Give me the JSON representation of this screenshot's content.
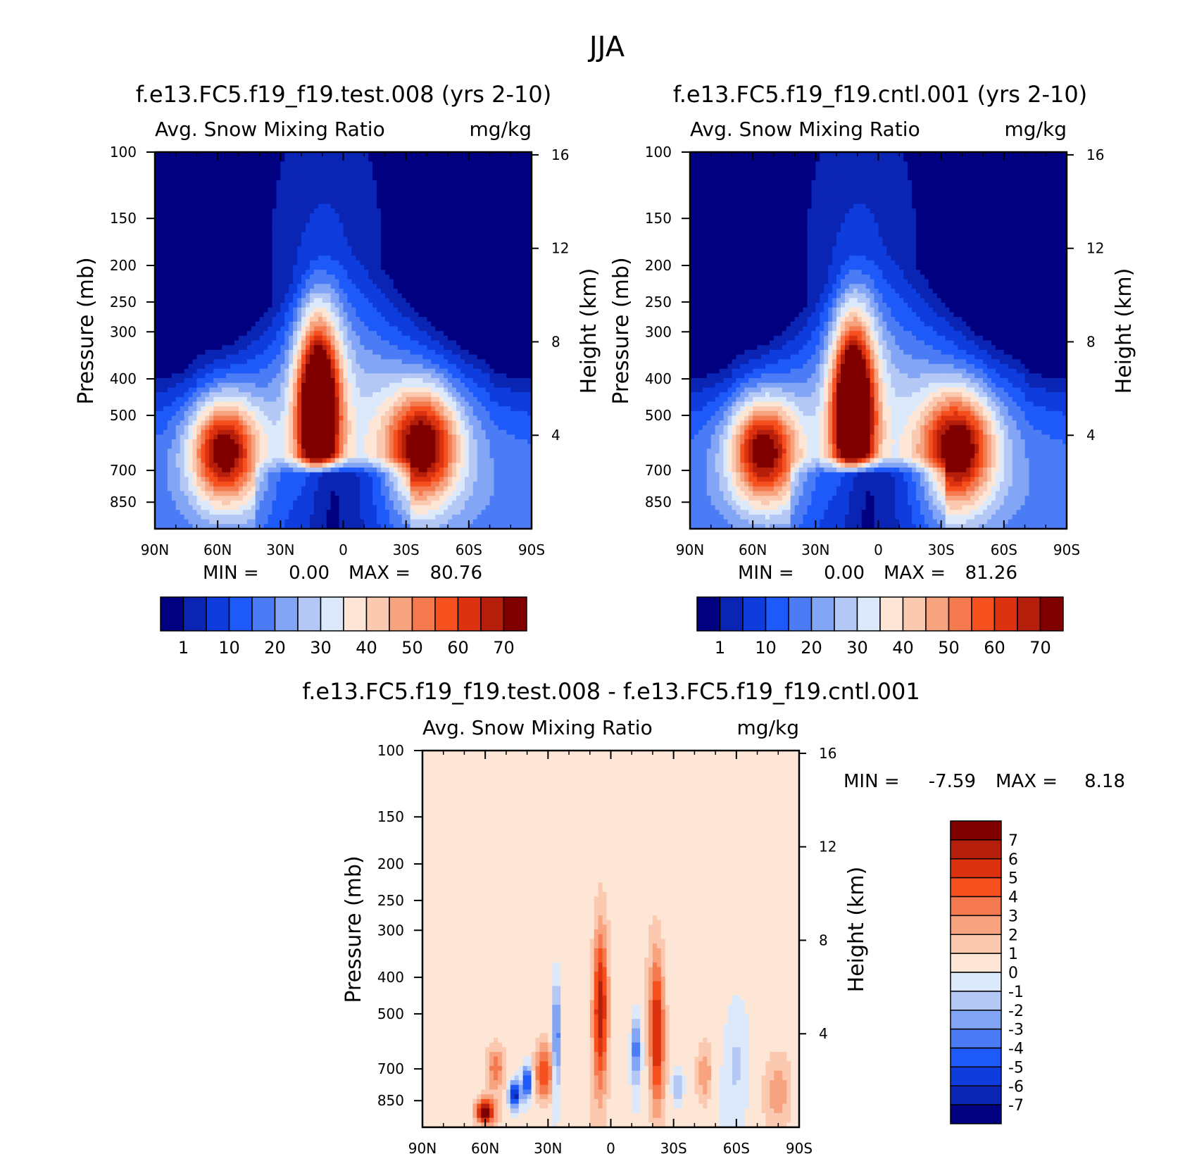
{
  "page": {
    "title": "JJA"
  },
  "colors": {
    "seq": [
      "#000080",
      "#0a24b4",
      "#0f3cdc",
      "#1e5afa",
      "#4b7cf5",
      "#82a5f5",
      "#b4c8f5",
      "#dce9fa",
      "#fde6d6",
      "#fbc8b0",
      "#f8a37f",
      "#f57a50",
      "#f5501e",
      "#dc320f",
      "#b41e0a",
      "#800000"
    ],
    "diff": [
      "#000080",
      "#0a24b4",
      "#0f3cdc",
      "#1e5afa",
      "#4b7cf5",
      "#82a5f5",
      "#b4c8f5",
      "#dce9fa",
      "#fde6d6",
      "#fbc8b0",
      "#f8a37f",
      "#f57a50",
      "#f5501e",
      "#dc320f",
      "#b41e0a",
      "#800000"
    ]
  },
  "chart_data": [
    {
      "type": "heatmap",
      "title": "f.e13.FC5.f19_f19.test.008 (yrs 2-10)",
      "subtitle_left": "Avg. Snow Mixing Ratio",
      "subtitle_right": "mg/kg",
      "xlabel": "",
      "ylabel": "Pressure (mb)",
      "ylabel_right": "Height (km)",
      "x_ticks": [
        "90N",
        "60N",
        "30N",
        "0",
        "30S",
        "60S",
        "90S"
      ],
      "y_ticks": [
        "100",
        "150",
        "200",
        "250",
        "300",
        "400",
        "500",
        "700",
        "850"
      ],
      "y_ticks_right": [
        "16",
        "12",
        "8",
        "4"
      ],
      "ylim": [
        1000,
        100
      ],
      "y_scale": "log",
      "min_label": "MIN =",
      "min_value": "0.00",
      "max_label": "MAX =",
      "max_value": "80.76",
      "colorbar_ticks": [
        "1",
        "10",
        "20",
        "30",
        "40",
        "50",
        "60",
        "70"
      ],
      "colorbar_orientation": "horizontal",
      "features": [
        {
          "lat": 57,
          "p": 620,
          "peak": 56,
          "sx": 11,
          "sy": 0.22
        },
        {
          "lat": 12,
          "p": 480,
          "peak": 80.8,
          "sx": 7,
          "sy": 0.38
        },
        {
          "lat": -38,
          "p": 600,
          "peak": 55,
          "sx": 12,
          "sy": 0.24
        }
      ]
    },
    {
      "type": "heatmap",
      "title": "f.e13.FC5.f19_f19.cntl.001 (yrs 2-10)",
      "subtitle_left": "Avg. Snow Mixing Ratio",
      "subtitle_right": "mg/kg",
      "xlabel": "",
      "ylabel": "Pressure (mb)",
      "ylabel_right": "Height (km)",
      "x_ticks": [
        "90N",
        "60N",
        "30N",
        "0",
        "30S",
        "60S",
        "90S"
      ],
      "y_ticks": [
        "100",
        "150",
        "200",
        "250",
        "300",
        "400",
        "500",
        "700",
        "850"
      ],
      "y_ticks_right": [
        "16",
        "12",
        "8",
        "4"
      ],
      "ylim": [
        1000,
        100
      ],
      "y_scale": "log",
      "min_label": "MIN =",
      "min_value": "0.00",
      "max_label": "MAX =",
      "max_value": "81.26",
      "colorbar_ticks": [
        "1",
        "10",
        "20",
        "30",
        "40",
        "50",
        "60",
        "70"
      ],
      "colorbar_orientation": "horizontal",
      "features": [
        {
          "lat": 55,
          "p": 620,
          "peak": 55,
          "sx": 11,
          "sy": 0.22
        },
        {
          "lat": 12,
          "p": 480,
          "peak": 81.3,
          "sx": 7,
          "sy": 0.38
        },
        {
          "lat": -38,
          "p": 610,
          "peak": 56,
          "sx": 12,
          "sy": 0.24
        }
      ]
    },
    {
      "type": "heatmap",
      "title": "f.e13.FC5.f19_f19.test.008 - f.e13.FC5.f19_f19.cntl.001",
      "subtitle_left": "Avg. Snow Mixing Ratio",
      "subtitle_right": "mg/kg",
      "xlabel": "",
      "ylabel": "Pressure (mb)",
      "ylabel_right": "Height (km)",
      "x_ticks": [
        "90N",
        "60N",
        "30N",
        "0",
        "30S",
        "60S",
        "90S"
      ],
      "y_ticks": [
        "100",
        "150",
        "200",
        "250",
        "300",
        "400",
        "500",
        "700",
        "850"
      ],
      "y_ticks_right": [
        "16",
        "12",
        "8",
        "4"
      ],
      "ylim": [
        1000,
        100
      ],
      "y_scale": "log",
      "min_label": "MIN =",
      "min_value": "-7.59",
      "max_label": "MAX =",
      "max_value": "8.18",
      "colorbar_ticks": [
        "7",
        "6",
        "5",
        "4",
        "3",
        "2",
        "1",
        "0",
        "-1",
        "-2",
        "-3",
        "-4",
        "-5",
        "-6",
        "-7"
      ],
      "colorbar_orientation": "vertical",
      "features": [
        {
          "lat": 5,
          "p": 480,
          "peak": 6.5,
          "sx": 2.5,
          "sy": 0.35
        },
        {
          "lat": -22,
          "p": 560,
          "peak": 6.0,
          "sx": 2.5,
          "sy": 0.33
        },
        {
          "lat": -12,
          "p": 620,
          "peak": -4.5,
          "sx": 1.5,
          "sy": 0.15
        },
        {
          "lat": 32,
          "p": 720,
          "peak": 5.0,
          "sx": 3,
          "sy": 0.12
        },
        {
          "lat": 40,
          "p": 760,
          "peak": -6.5,
          "sx": 1.5,
          "sy": 0.07
        },
        {
          "lat": 26,
          "p": 570,
          "peak": -5.0,
          "sx": 1.2,
          "sy": 0.24
        },
        {
          "lat": 60,
          "p": 910,
          "peak": 8.2,
          "sx": 3,
          "sy": 0.05
        },
        {
          "lat": 46,
          "p": 820,
          "peak": -7.5,
          "sx": 2,
          "sy": 0.06
        },
        {
          "lat": 55,
          "p": 700,
          "peak": 3.0,
          "sx": 3,
          "sy": 0.1
        },
        {
          "lat": -45,
          "p": 720,
          "peak": 2.5,
          "sx": 2.5,
          "sy": 0.12
        },
        {
          "lat": -32,
          "p": 780,
          "peak": -3.0,
          "sx": 2,
          "sy": 0.08
        },
        {
          "lat": -80,
          "p": 800,
          "peak": 2.0,
          "sx": 4,
          "sy": 0.15
        },
        {
          "lat": -60,
          "p": 650,
          "peak": -1.5,
          "sx": 4,
          "sy": 0.3
        }
      ]
    }
  ]
}
